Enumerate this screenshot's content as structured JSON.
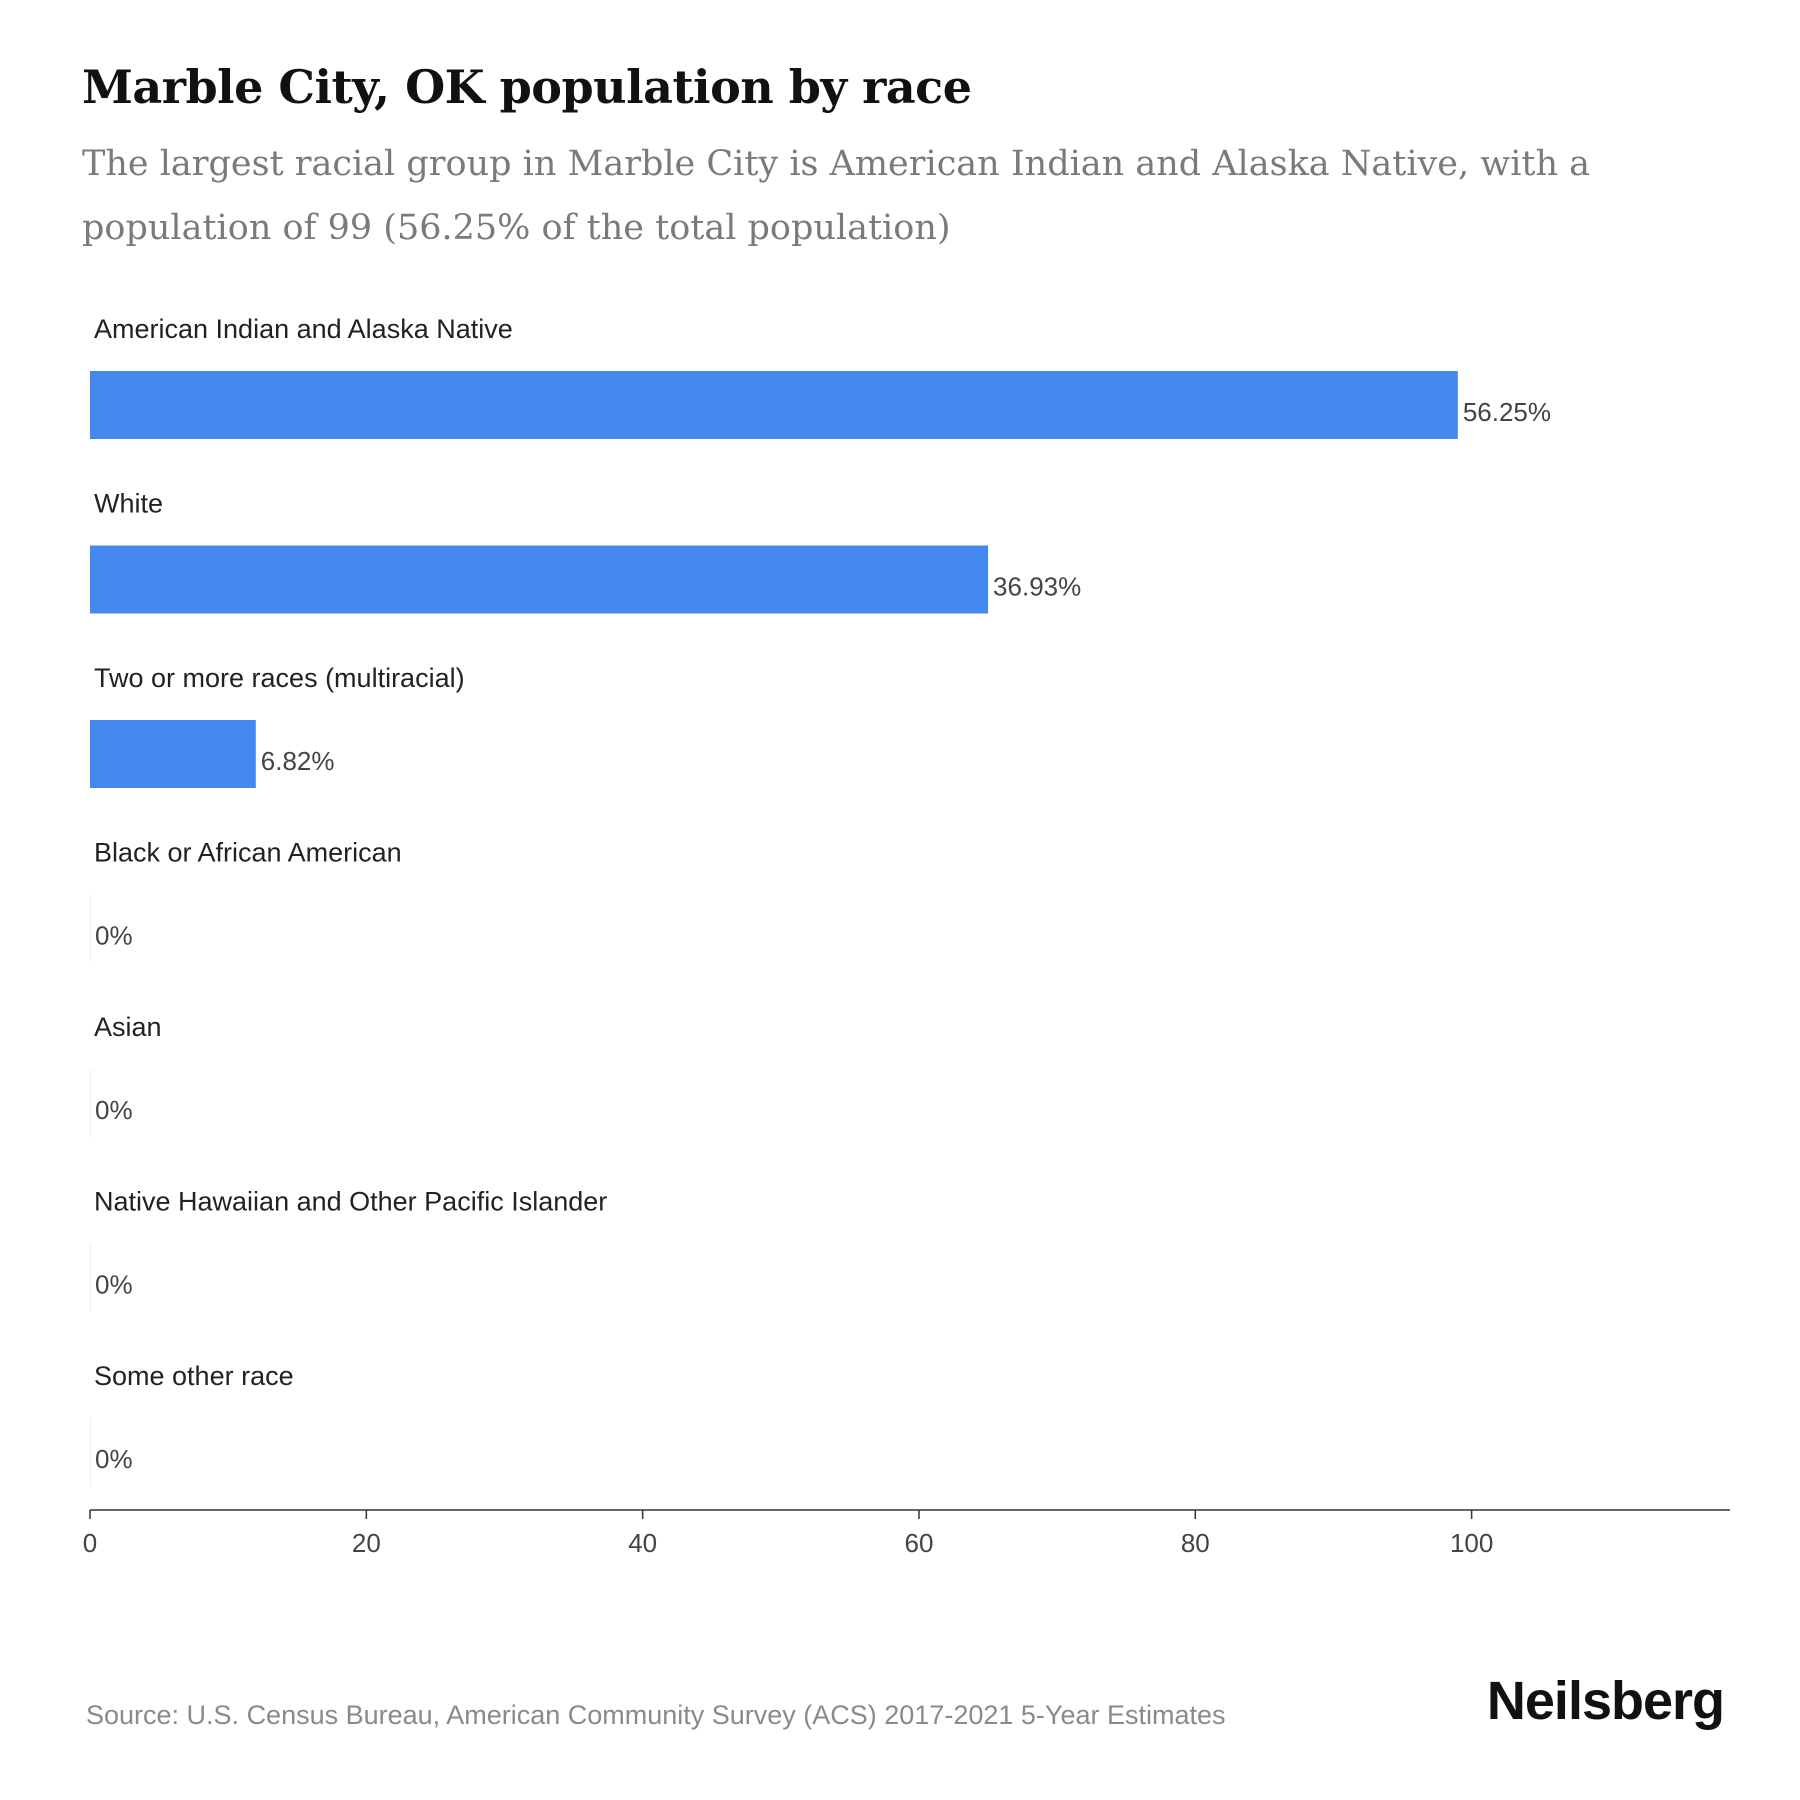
{
  "title": "Marble City, OK population by race",
  "subtitle": "The largest racial group in Marble City is American Indian and Alaska Native, with a population of 99 (56.25% of the total population)",
  "source": "Source: U.S. Census Bureau, American Community Survey (ACS) 2017-2021 5-Year Estimates",
  "brand": "Neilsberg",
  "colors": {
    "bar": "#4589f0",
    "axis": "#333333"
  },
  "chart_data": {
    "type": "bar",
    "orientation": "horizontal",
    "categories": [
      "American Indian and Alaska Native",
      "White",
      "Two or more races (multiracial)",
      "Black or African American",
      "Asian",
      "Native Hawaiian and Other Pacific Islander",
      "Some other race"
    ],
    "values": [
      99,
      65,
      12,
      0,
      0,
      0,
      0
    ],
    "value_labels": [
      "56.25%",
      "36.93%",
      "6.82%",
      "0%",
      "0%",
      "0%",
      "0%"
    ],
    "xlim": [
      0,
      118.7
    ],
    "xticks": [
      0,
      20,
      40,
      60,
      80,
      100
    ],
    "grid": false,
    "legend": "none"
  }
}
